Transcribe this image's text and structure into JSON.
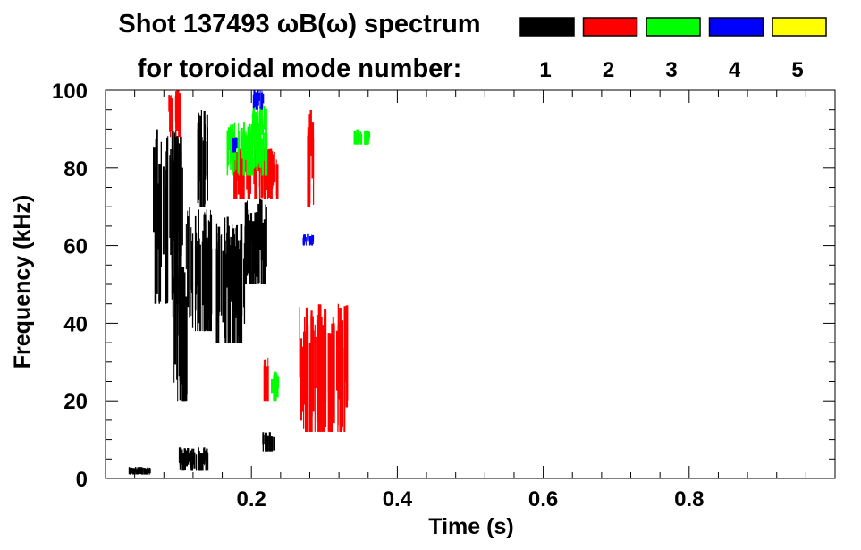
{
  "chart_data": {
    "type": "heatmap",
    "title": "Shot 137493 ωB(ω) spectrum",
    "legend_title": "for toroidal mode number:",
    "legend_placement": "top-right",
    "legend": [
      {
        "label": "1",
        "color": "#000000"
      },
      {
        "label": "2",
        "color": "#ff0000"
      },
      {
        "label": "3",
        "color": "#00ff00"
      },
      {
        "label": "4",
        "color": "#0000ff"
      },
      {
        "label": "5",
        "color": "#ffff00"
      }
    ],
    "xlabel": "Time (s)",
    "ylabel": "Frequency (kHz)",
    "xlim": [
      0,
      1
    ],
    "ylim": [
      0,
      100
    ],
    "xticks": [
      "0.2",
      "0.4",
      "0.6",
      "0.8"
    ],
    "xtick_values": [
      0.2,
      0.4,
      0.6,
      0.8
    ],
    "yticks": [
      "0",
      "20",
      "40",
      "60",
      "80",
      "100"
    ],
    "ytick_values": [
      0,
      20,
      40,
      60,
      80,
      100
    ],
    "grid": false,
    "regions": [
      {
        "mode": "1",
        "t": [
          0.065,
          0.105
        ],
        "f": [
          45,
          90
        ]
      },
      {
        "mode": "1",
        "t": [
          0.09,
          0.11
        ],
        "f": [
          20,
          55
        ]
      },
      {
        "mode": "1",
        "t": [
          0.11,
          0.145
        ],
        "f": [
          38,
          70
        ]
      },
      {
        "mode": "1",
        "t": [
          0.15,
          0.19
        ],
        "f": [
          35,
          68
        ]
      },
      {
        "mode": "1",
        "t": [
          0.19,
          0.22
        ],
        "f": [
          50,
          72
        ]
      },
      {
        "mode": "1",
        "t": [
          0.125,
          0.14
        ],
        "f": [
          70,
          95
        ]
      },
      {
        "mode": "1",
        "t": [
          0.1,
          0.14
        ],
        "f": [
          2,
          8
        ]
      },
      {
        "mode": "1",
        "t": [
          0.215,
          0.23
        ],
        "f": [
          7,
          12
        ]
      },
      {
        "mode": "1",
        "t": [
          0.03,
          0.06
        ],
        "f": [
          1,
          3
        ]
      },
      {
        "mode": "2",
        "t": [
          0.175,
          0.235
        ],
        "f": [
          72,
          85
        ]
      },
      {
        "mode": "2",
        "t": [
          0.085,
          0.1
        ],
        "f": [
          88,
          100
        ]
      },
      {
        "mode": "2",
        "t": [
          0.265,
          0.33
        ],
        "f": [
          12,
          45
        ]
      },
      {
        "mode": "2",
        "t": [
          0.215,
          0.225
        ],
        "f": [
          20,
          32
        ]
      },
      {
        "mode": "2",
        "t": [
          0.275,
          0.285
        ],
        "f": [
          70,
          95
        ]
      },
      {
        "mode": "3",
        "t": [
          0.165,
          0.22
        ],
        "f": [
          78,
          92
        ]
      },
      {
        "mode": "3",
        "t": [
          0.2,
          0.22
        ],
        "f": [
          88,
          96
        ]
      },
      {
        "mode": "3",
        "t": [
          0.225,
          0.235
        ],
        "f": [
          20,
          28
        ]
      },
      {
        "mode": "3",
        "t": [
          0.34,
          0.36
        ],
        "f": [
          86,
          90
        ]
      },
      {
        "mode": "4",
        "t": [
          0.2,
          0.215
        ],
        "f": [
          95,
          100
        ]
      },
      {
        "mode": "4",
        "t": [
          0.17,
          0.18
        ],
        "f": [
          84,
          88
        ]
      },
      {
        "mode": "4",
        "t": [
          0.27,
          0.285
        ],
        "f": [
          60,
          63
        ]
      }
    ]
  }
}
